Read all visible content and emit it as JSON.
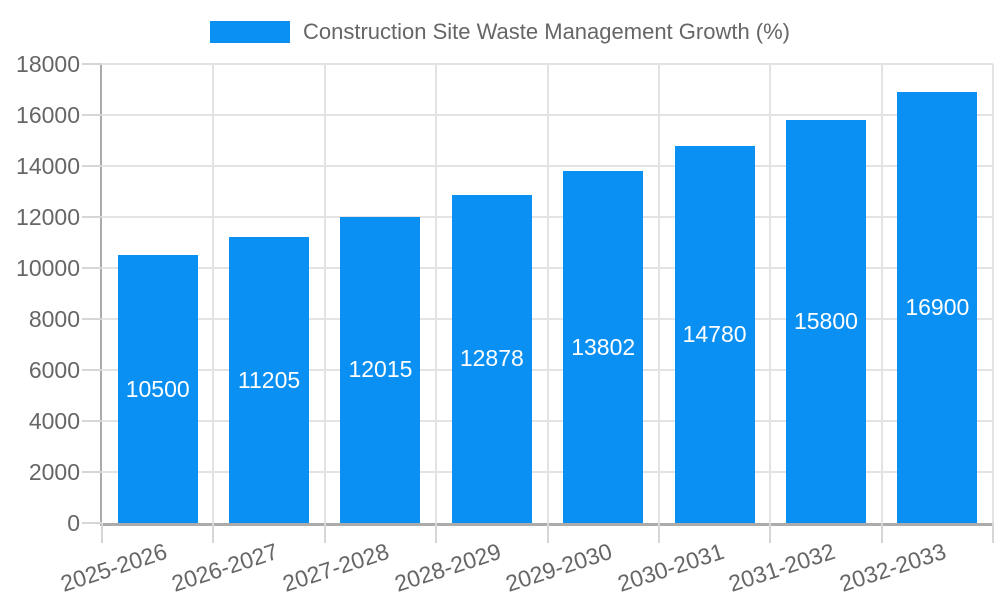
{
  "chart_data": {
    "type": "bar",
    "title": "Construction Site Waste Management Growth (%)",
    "legend": {
      "position": "top",
      "label": "Construction Site Waste Management Growth (%)"
    },
    "categories": [
      "2025-2026",
      "2026-2027",
      "2027-2028",
      "2028-2029",
      "2029-2030",
      "2030-2031",
      "2031-2032",
      "2032-2033"
    ],
    "values": [
      10500,
      11205,
      12015,
      12878,
      13802,
      14780,
      15800,
      16900
    ],
    "bar_value_labels": [
      "10500",
      "11205",
      "12015",
      "12878",
      "13802",
      "14780",
      "15800",
      "16900"
    ],
    "xlabel": "",
    "ylabel": "",
    "ylim": [
      0,
      18000
    ],
    "ytick_step": 2000,
    "yticks": [
      "0",
      "2000",
      "4000",
      "6000",
      "8000",
      "10000",
      "12000",
      "14000",
      "16000",
      "18000"
    ],
    "grid": true,
    "x_label_rotation_deg": -18,
    "colors": {
      "bar": "#0a90f2",
      "bar_label": "#ffffff",
      "grid": "#e3e3e3",
      "axis": "#ababab",
      "tick": "#d6d6d6",
      "text": "#666666",
      "background": "#ffffff"
    }
  }
}
